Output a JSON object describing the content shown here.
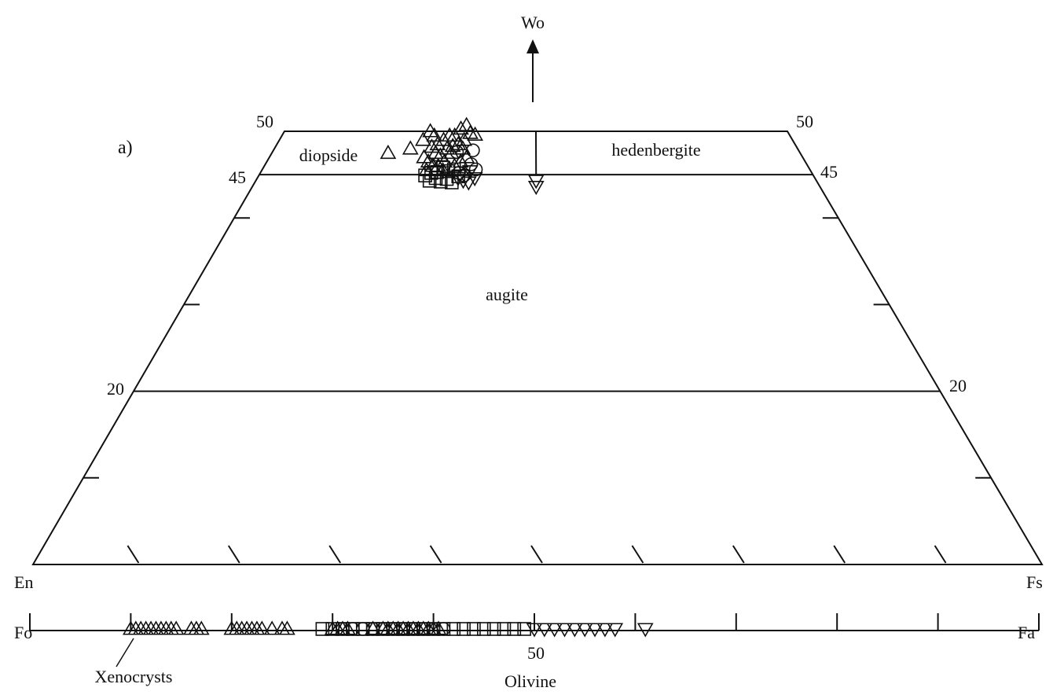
{
  "chart_data": [
    {
      "type": "scatter",
      "diagram": "pyroxene quadrilateral (Wo-En-Fs)",
      "panel_label": "a)",
      "corners": {
        "left": "En",
        "right": "Fs",
        "apex_arrow": "Wo"
      },
      "fields": [
        "diopside",
        "hedenbergite",
        "augite"
      ],
      "wo_gridlines": [
        50,
        45,
        20
      ],
      "wo_tick_labels": {
        "left": [
          "50",
          "45",
          "20"
        ],
        "right": [
          "50",
          "45",
          "20"
        ]
      },
      "x_axis": "Fs/(En+Fs) percent, 0-100",
      "series": [
        {
          "symbol": "triangle-up",
          "points": [
            [
              26,
              48
            ],
            [
              28,
              49
            ],
            [
              29,
              50
            ],
            [
              30,
              49.5
            ],
            [
              31,
              48.5
            ],
            [
              32,
              49
            ],
            [
              33,
              49.5
            ],
            [
              31,
              47.5
            ],
            [
              29,
              47
            ],
            [
              30,
              46.5
            ],
            [
              32,
              46
            ],
            [
              33,
              46.5
            ],
            [
              34,
              47.5
            ],
            [
              35,
              48.5
            ],
            [
              34,
              49.5
            ],
            [
              36,
              49
            ],
            [
              31,
              46
            ],
            [
              30,
              45.5
            ],
            [
              33,
              45.5
            ],
            [
              35,
              46
            ],
            [
              36,
              46.5
            ],
            [
              37,
              47
            ],
            [
              36,
              48
            ],
            [
              33,
              48
            ],
            [
              22,
              47.5
            ],
            [
              35,
              50.3
            ],
            [
              36,
              50.7
            ],
            [
              37,
              49.8
            ],
            [
              38,
              49.6
            ],
            [
              34,
              48.3
            ],
            [
              32,
              47.2
            ],
            [
              30,
              48.2
            ]
          ]
        },
        {
          "symbol": "square",
          "points": [
            [
              31,
              44.3
            ],
            [
              32,
              44.6
            ],
            [
              33,
              44.2
            ],
            [
              34,
              44.5
            ],
            [
              35,
              44.1
            ],
            [
              32,
              45.3
            ],
            [
              34,
              45.4
            ],
            [
              36,
              44.8
            ],
            [
              31,
              45.2
            ],
            [
              33,
              45.8
            ],
            [
              35,
              45.6
            ],
            [
              30,
              44.9
            ]
          ]
        },
        {
          "symbol": "circle",
          "points": [
            [
              38,
              47.8
            ],
            [
              39,
              45.6
            ],
            [
              37,
              44.9
            ],
            [
              36,
              45.2
            ],
            [
              38,
              46.2
            ],
            [
              35,
              47.6
            ]
          ]
        },
        {
          "symbol": "triangle-down",
          "points": [
            [
              50,
              44.3
            ],
            [
              50,
              43.6
            ],
            [
              39,
              44.6
            ],
            [
              38,
              44.1
            ],
            [
              37,
              44.3
            ],
            [
              36,
              44.6
            ],
            [
              38,
              45.4
            ]
          ]
        }
      ]
    },
    {
      "type": "scatter",
      "diagram": "olivine Fo-Fa join",
      "title": "Olivine",
      "end_labels": {
        "left": "Fo",
        "right": "Fa"
      },
      "tick_label": "50",
      "annotation": "Xenocrysts",
      "x_axis": "Fa percent, 0-100",
      "series": [
        {
          "symbol": "triangle-up",
          "points": [
            10,
            10.5,
            11,
            11.5,
            12,
            12.5,
            13,
            13.5,
            14,
            14.5,
            16,
            16.5,
            17,
            20,
            20.5,
            21,
            21.5,
            22,
            22.5,
            23,
            24,
            25,
            25.5,
            30,
            30.5,
            31,
            31.5,
            34,
            35,
            35.5,
            36,
            36.5,
            37,
            37.5,
            38,
            38.5,
            39,
            39.5,
            40,
            40.5
          ]
        },
        {
          "symbol": "square",
          "points": [
            29,
            30,
            31,
            32,
            33,
            34,
            35,
            36,
            37,
            38,
            39,
            40,
            41,
            42,
            43,
            44,
            45,
            46,
            47,
            48,
            49
          ]
        },
        {
          "symbol": "circle",
          "points": [
            31,
            32,
            33,
            34,
            35,
            36,
            37,
            38,
            39,
            40,
            41
          ]
        },
        {
          "symbol": "triangle-down",
          "points": [
            50,
            51,
            52,
            53,
            54,
            55,
            56,
            57,
            58,
            61
          ]
        }
      ]
    }
  ]
}
